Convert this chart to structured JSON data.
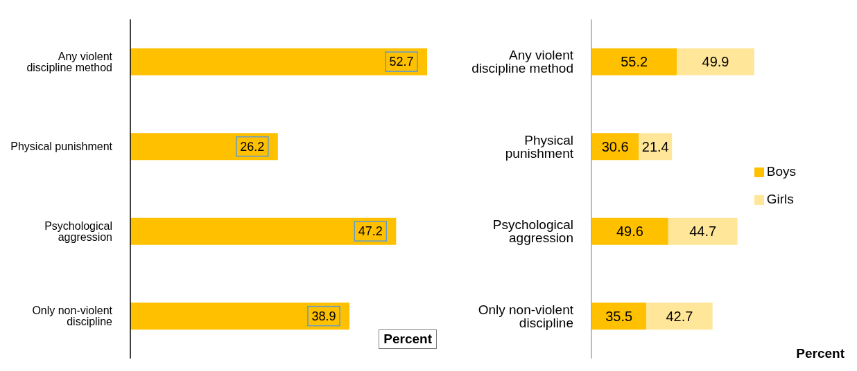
{
  "chart_data": [
    {
      "type": "bar",
      "orientation": "horizontal",
      "categories": [
        "Any violent discipline method",
        "Physical punishment",
        "Psychological aggression",
        "Only non-violent discipline"
      ],
      "values": [
        52.7,
        26.2,
        47.2,
        38.9
      ],
      "color": "#ffc000",
      "data_labels": true,
      "annotations": [
        "Percent"
      ]
    },
    {
      "type": "bar",
      "orientation": "horizontal",
      "stacked": true,
      "categories": [
        "Any violent discipline method",
        "Physical punishment",
        "Psychological aggression",
        "Only non-violent discipline"
      ],
      "series": [
        {
          "name": "Boys",
          "color": "#ffc000",
          "values": [
            55.2,
            30.6,
            49.6,
            35.5
          ]
        },
        {
          "name": "Girls",
          "color": "#ffe699",
          "values": [
            49.9,
            21.4,
            44.7,
            42.7
          ]
        }
      ],
      "legend": "right",
      "data_labels": true,
      "annotations": [
        "Percent"
      ]
    }
  ]
}
